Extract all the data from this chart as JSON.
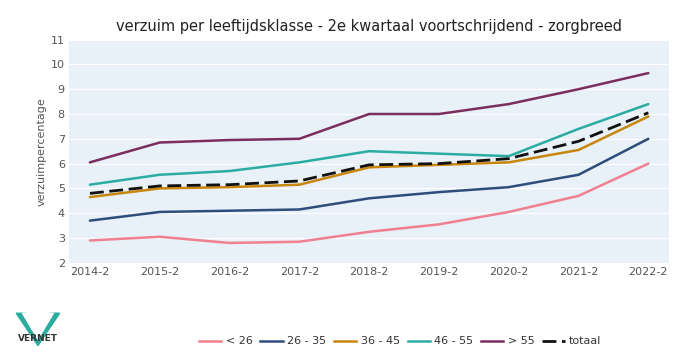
{
  "title": "verzuim per leeftijdsklasse - 2e kwartaal voortschrijdend - zorgbreed",
  "ylabel": "verzuimpercentage",
  "xlabels": [
    "2014-2",
    "2015-2",
    "2016-2",
    "2017-2",
    "2018-2",
    "2019-2",
    "2020-2",
    "2021-2",
    "2022-2"
  ],
  "ylim": [
    2,
    11
  ],
  "yticks": [
    2,
    3,
    4,
    5,
    6,
    7,
    8,
    9,
    10,
    11
  ],
  "series": {
    "< 26": [
      2.9,
      3.05,
      2.8,
      2.85,
      3.25,
      3.55,
      4.05,
      4.7,
      6.0
    ],
    "26 - 35": [
      3.7,
      4.05,
      4.1,
      4.15,
      4.6,
      4.85,
      5.05,
      5.55,
      7.0
    ],
    "36 - 45": [
      4.65,
      5.0,
      5.05,
      5.15,
      5.85,
      5.95,
      6.05,
      6.55,
      7.9
    ],
    "46 - 55": [
      5.15,
      5.55,
      5.7,
      6.05,
      6.5,
      6.4,
      6.3,
      7.4,
      8.4
    ],
    "> 55": [
      6.05,
      6.85,
      6.95,
      7.0,
      8.0,
      8.0,
      8.4,
      9.0,
      9.65
    ],
    "totaal": [
      4.8,
      5.1,
      5.15,
      5.3,
      5.95,
      6.0,
      6.2,
      6.9,
      8.05
    ]
  },
  "colors": {
    "< 26": "#f08090",
    "26 - 35": "#2e4d7b",
    "36 - 45": "#c8860a",
    "46 - 55": "#2aada0",
    "> 55": "#7b2d5e",
    "totaal": "#111111"
  },
  "fig_bg": "#ffffff",
  "plot_bg": "#e8f0f8",
  "title_fontsize": 10.5,
  "axis_fontsize": 8,
  "legend_fontsize": 8,
  "tick_color": "#555555"
}
